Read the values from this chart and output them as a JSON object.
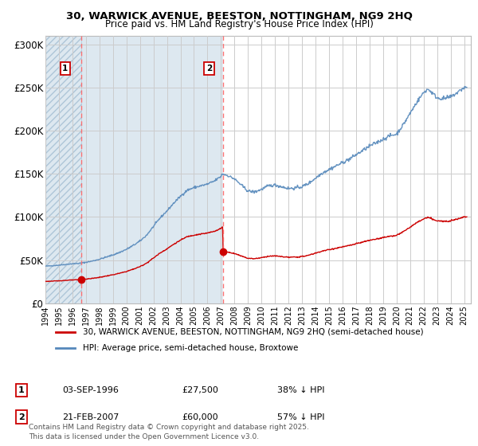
{
  "title": "30, WARWICK AVENUE, BEESTON, NOTTINGHAM, NG9 2HQ",
  "subtitle": "Price paid vs. HM Land Registry's House Price Index (HPI)",
  "legend_entry1": "30, WARWICK AVENUE, BEESTON, NOTTINGHAM, NG9 2HQ (semi-detached house)",
  "legend_entry2": "HPI: Average price, semi-detached house, Broxtowe",
  "annotation1_date": "03-SEP-1996",
  "annotation1_price": "£27,500",
  "annotation1_note": "38% ↓ HPI",
  "annotation2_date": "21-FEB-2007",
  "annotation2_price": "£60,000",
  "annotation2_note": "57% ↓ HPI",
  "footnote": "Contains HM Land Registry data © Crown copyright and database right 2025.\nThis data is licensed under the Open Government Licence v3.0.",
  "color_red": "#cc0000",
  "color_blue": "#5588bb",
  "color_hatch_fill": "#dde8f0",
  "ylim": [
    0,
    310000
  ],
  "yticks": [
    0,
    50000,
    100000,
    150000,
    200000,
    250000,
    300000
  ],
  "ytick_labels": [
    "£0",
    "£50K",
    "£100K",
    "£150K",
    "£200K",
    "£250K",
    "£300K"
  ],
  "vline1_x": 1996.67,
  "vline2_x": 2007.13,
  "sale1_date": 1996.67,
  "sale1_price": 27500,
  "sale2_date": 2007.13,
  "sale2_price": 60000,
  "xmin": 1994.0,
  "xmax": 2025.5
}
